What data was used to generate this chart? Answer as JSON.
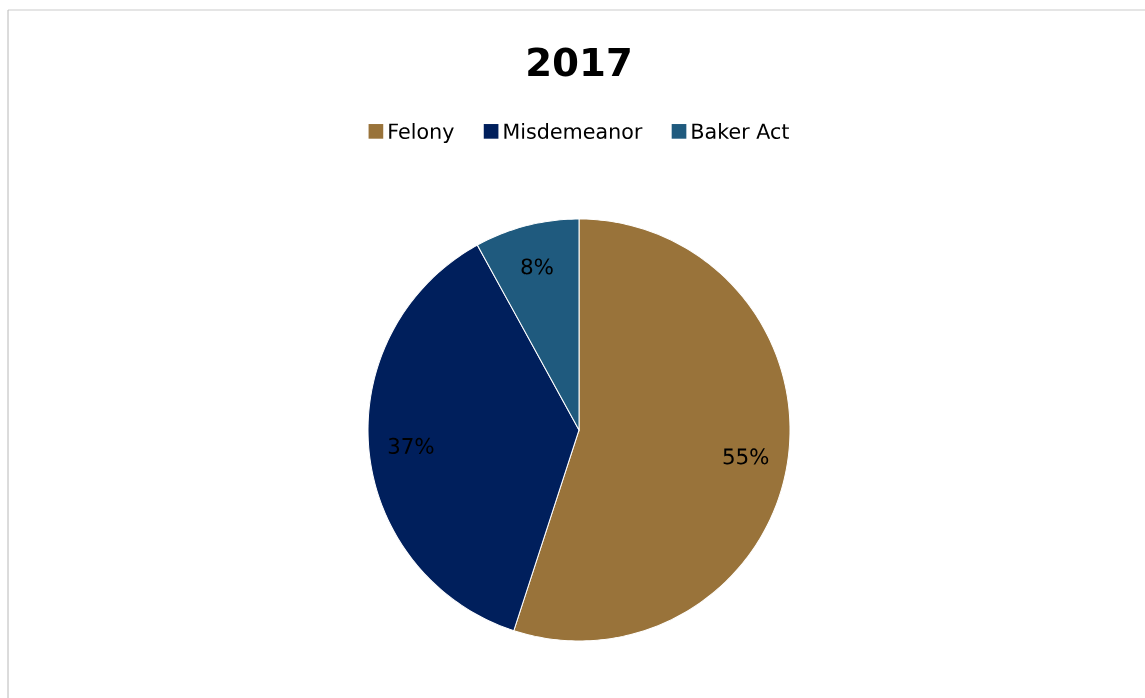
{
  "chart_data": {
    "type": "pie",
    "title": "2017",
    "categories": [
      "Felony",
      "Misdemeanor",
      "Baker Act"
    ],
    "values": [
      55,
      37,
      8
    ],
    "colors": [
      "#99733a",
      "#001f5c",
      "#1f5a7e"
    ],
    "value_labels": [
      "55%",
      "37%",
      "8%"
    ],
    "legend": "top"
  }
}
